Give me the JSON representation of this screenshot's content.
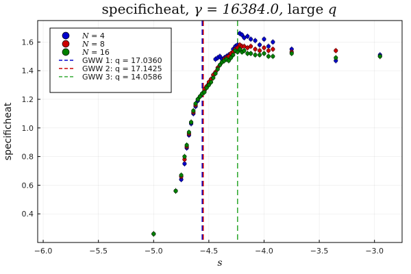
{
  "chart_data": {
    "type": "scatter",
    "title": "specificheat, γ = 16384.0, large q",
    "xlabel": "s",
    "ylabel": "specificheat",
    "xlim": [
      -6.05,
      -2.75
    ],
    "ylim": [
      0.2,
      1.75
    ],
    "xticks": [
      -6.0,
      -5.5,
      -5.0,
      -4.5,
      -4.0,
      -3.5,
      -3.0
    ],
    "xtick_labels": [
      "−6.0",
      "−5.5",
      "−5.0",
      "−4.5",
      "−4.0",
      "−3.5",
      "−3.0"
    ],
    "yticks": [
      0.4,
      0.6,
      0.8,
      1.0,
      1.2,
      1.4,
      1.6
    ],
    "ytick_labels": [
      "0.4",
      "0.6",
      "0.8",
      "1.0",
      "1.2",
      "1.4",
      "1.6"
    ],
    "grid": true,
    "legend_position": "top-left",
    "series": [
      {
        "name": "N = 4",
        "color": "#0000cc",
        "x": [
          -5.0,
          -4.8,
          -4.75,
          -4.72,
          -4.7,
          -4.68,
          -4.66,
          -4.64,
          -4.62,
          -4.6,
          -4.58,
          -4.56,
          -4.54,
          -4.52,
          -4.5,
          -4.48,
          -4.46,
          -4.44,
          -4.42,
          -4.4,
          -4.38,
          -4.36,
          -4.34,
          -4.32,
          -4.3,
          -4.28,
          -4.26,
          -4.24,
          -4.22,
          -4.2,
          -4.18,
          -4.15,
          -4.12,
          -4.08,
          -4.04,
          -4.0,
          -3.96,
          -3.92,
          -3.75,
          -3.35,
          -2.95
        ],
        "y": [
          0.26,
          0.56,
          0.64,
          0.75,
          0.86,
          0.95,
          1.03,
          1.1,
          1.15,
          1.19,
          1.22,
          1.24,
          1.26,
          1.29,
          1.31,
          1.34,
          1.37,
          1.48,
          1.49,
          1.5,
          1.48,
          1.49,
          1.5,
          1.51,
          1.52,
          1.55,
          1.57,
          1.58,
          1.66,
          1.65,
          1.63,
          1.64,
          1.62,
          1.61,
          1.58,
          1.62,
          1.57,
          1.6,
          1.55,
          1.47,
          1.51
        ]
      },
      {
        "name": "N = 8",
        "color": "#cc0000",
        "x": [
          -5.0,
          -4.8,
          -4.75,
          -4.72,
          -4.7,
          -4.68,
          -4.66,
          -4.64,
          -4.62,
          -4.6,
          -4.58,
          -4.56,
          -4.54,
          -4.52,
          -4.5,
          -4.48,
          -4.46,
          -4.44,
          -4.42,
          -4.4,
          -4.38,
          -4.36,
          -4.34,
          -4.32,
          -4.3,
          -4.28,
          -4.26,
          -4.24,
          -4.22,
          -4.2,
          -4.18,
          -4.15,
          -4.12,
          -4.08,
          -4.04,
          -4.0,
          -3.96,
          -3.92,
          -3.75,
          -3.35,
          -2.95
        ],
        "y": [
          0.26,
          0.56,
          0.66,
          0.78,
          0.87,
          0.96,
          1.04,
          1.11,
          1.16,
          1.2,
          1.22,
          1.24,
          1.27,
          1.29,
          1.32,
          1.34,
          1.37,
          1.39,
          1.42,
          1.44,
          1.46,
          1.48,
          1.49,
          1.5,
          1.52,
          1.53,
          1.55,
          1.56,
          1.58,
          1.57,
          1.57,
          1.56,
          1.57,
          1.55,
          1.54,
          1.56,
          1.54,
          1.55,
          1.53,
          1.54,
          1.5
        ]
      },
      {
        "name": "N = 16",
        "color": "#008000",
        "x": [
          -5.0,
          -4.8,
          -4.75,
          -4.72,
          -4.7,
          -4.68,
          -4.66,
          -4.64,
          -4.62,
          -4.6,
          -4.58,
          -4.56,
          -4.54,
          -4.52,
          -4.5,
          -4.48,
          -4.46,
          -4.44,
          -4.42,
          -4.4,
          -4.38,
          -4.36,
          -4.34,
          -4.32,
          -4.3,
          -4.28,
          -4.26,
          -4.24,
          -4.22,
          -4.2,
          -4.18,
          -4.15,
          -4.12,
          -4.08,
          -4.04,
          -4.0,
          -3.96,
          -3.92,
          -3.75,
          -3.35,
          -2.95
        ],
        "y": [
          0.26,
          0.56,
          0.67,
          0.8,
          0.88,
          0.97,
          1.04,
          1.12,
          1.17,
          1.2,
          1.22,
          1.24,
          1.25,
          1.28,
          1.3,
          1.32,
          1.35,
          1.38,
          1.41,
          1.44,
          1.46,
          1.47,
          1.48,
          1.47,
          1.49,
          1.51,
          1.54,
          1.53,
          1.55,
          1.53,
          1.54,
          1.52,
          1.52,
          1.51,
          1.51,
          1.52,
          1.5,
          1.5,
          1.52,
          1.49,
          1.5
        ]
      }
    ],
    "vlines": [
      {
        "name": "GWW 1: q = 17.0360",
        "x": -4.56,
        "color": "#0000cc"
      },
      {
        "name": "GWW 2: q = 17.1425",
        "x": -4.56,
        "color": "#cc0000"
      },
      {
        "name": "GWW 3: q = 14.0586",
        "x": -4.24,
        "color": "#33aa33"
      }
    ]
  }
}
